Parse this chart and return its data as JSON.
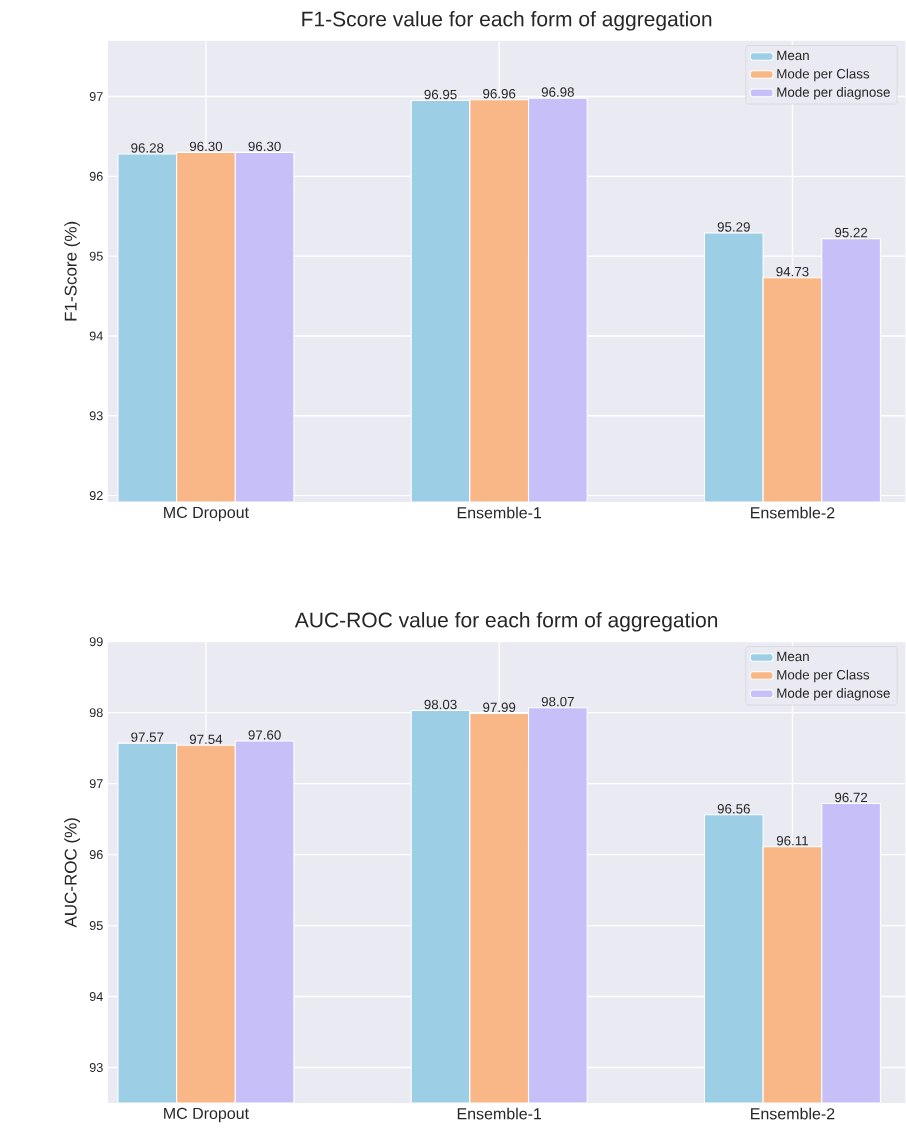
{
  "chart_data": [
    {
      "type": "bar",
      "title": "F1-Score value for each form of aggregation",
      "ylabel": "F1-Score (%)",
      "categories": [
        "MC Dropout",
        "Ensemble-1",
        "Ensemble-2"
      ],
      "series": [
        {
          "name": "Mean",
          "color": "#9ccfe6",
          "values": [
            96.28,
            96.95,
            95.29
          ],
          "value_labels": [
            "96.28",
            "96.95",
            "95.29"
          ]
        },
        {
          "name": "Mode per Class",
          "color": "#f9b787",
          "values": [
            96.3,
            96.96,
            94.73
          ],
          "value_labels": [
            "96.30",
            "96.96",
            "94.73"
          ]
        },
        {
          "name": "Mode per diagnose",
          "color": "#c6bff8",
          "values": [
            96.3,
            96.98,
            95.22
          ],
          "value_labels": [
            "96.30",
            "96.98",
            "95.22"
          ]
        }
      ],
      "ylim": [
        91.92,
        97.7
      ],
      "yticks": [
        92,
        93,
        94,
        95,
        96,
        97
      ],
      "grid": true,
      "legend": "top right"
    },
    {
      "type": "bar",
      "title": "AUC-ROC value for each form of aggregation",
      "ylabel": "AUC-ROC (%)",
      "categories": [
        "MC Dropout",
        "Ensemble-1",
        "Ensemble-2"
      ],
      "series": [
        {
          "name": "Mean",
          "color": "#9ccfe6",
          "values": [
            97.57,
            98.03,
            96.56
          ],
          "value_labels": [
            "97.57",
            "98.03",
            "96.56"
          ]
        },
        {
          "name": "Mode per Class",
          "color": "#f9b787",
          "values": [
            97.54,
            97.99,
            96.11
          ],
          "value_labels": [
            "97.54",
            "97.99",
            "96.11"
          ]
        },
        {
          "name": "Mode per diagnose",
          "color": "#c6bff8",
          "values": [
            97.6,
            98.07,
            96.72
          ],
          "value_labels": [
            "97.60",
            "98.07",
            "96.72"
          ]
        }
      ],
      "ylim": [
        92.5,
        99
      ],
      "yticks": [
        93,
        94,
        95,
        96,
        97,
        98,
        99
      ],
      "grid": true,
      "legend": "top right"
    }
  ]
}
